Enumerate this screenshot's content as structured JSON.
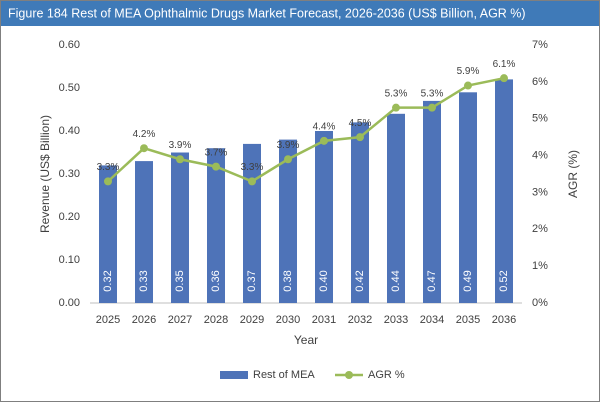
{
  "chart_data": {
    "type": "bar",
    "title": "Figure 184 Rest of MEA Ophthalmic Drugs Market Forecast, 2026-2036 (US$ Billion, AGR %)",
    "x_label": "Year",
    "y_label": "Revenue (US$ Billion)",
    "y2_label": "AGR (%)",
    "categories": [
      "2025",
      "2026",
      "2027",
      "2028",
      "2029",
      "2030",
      "2031",
      "2032",
      "2033",
      "2034",
      "2035",
      "2036"
    ],
    "series": [
      {
        "name": "Rest of MEA",
        "type": "bar",
        "color": "#4e73b8",
        "values": [
          0.32,
          0.33,
          0.35,
          0.36,
          0.37,
          0.38,
          0.4,
          0.42,
          0.44,
          0.47,
          0.49,
          0.52
        ],
        "value_labels": [
          "0.32",
          "0.33",
          "0.35",
          "0.36",
          "0.37",
          "0.38",
          "0.40",
          "0.42",
          "0.44",
          "0.47",
          "0.49",
          "0.52"
        ]
      },
      {
        "name": "AGR %",
        "type": "line",
        "axis": "y2",
        "color": "#9bbb59",
        "values": [
          3.3,
          4.2,
          3.9,
          3.7,
          3.3,
          3.9,
          4.4,
          4.5,
          5.3,
          5.3,
          5.9,
          6.1
        ],
        "value_labels": [
          "3.3%",
          "4.2%",
          "3.9%",
          "3.7%",
          "3.3%",
          "3.9%",
          "4.4%",
          "4.5%",
          "5.3%",
          "5.3%",
          "5.9%",
          "6.1%"
        ]
      }
    ],
    "ylim": [
      0,
      0.6
    ],
    "yticks": [
      {
        "value": 0,
        "label": "0.00"
      },
      {
        "value": 0.1,
        "label": "0.10"
      },
      {
        "value": 0.2,
        "label": "0.20"
      },
      {
        "value": 0.3,
        "label": "0.30"
      },
      {
        "value": 0.4,
        "label": "0.40"
      },
      {
        "value": 0.5,
        "label": "0.50"
      },
      {
        "value": 0.6,
        "label": "0.60"
      }
    ],
    "y2lim": [
      0,
      7
    ],
    "y2ticks": [
      {
        "value": 0,
        "label": "0%"
      },
      {
        "value": 1,
        "label": "1%"
      },
      {
        "value": 2,
        "label": "2%"
      },
      {
        "value": 3,
        "label": "3%"
      },
      {
        "value": 4,
        "label": "4%"
      },
      {
        "value": 5,
        "label": "5%"
      },
      {
        "value": 6,
        "label": "6%"
      },
      {
        "value": 7,
        "label": "7%"
      }
    ],
    "grid": false,
    "legend": "bottom"
  }
}
